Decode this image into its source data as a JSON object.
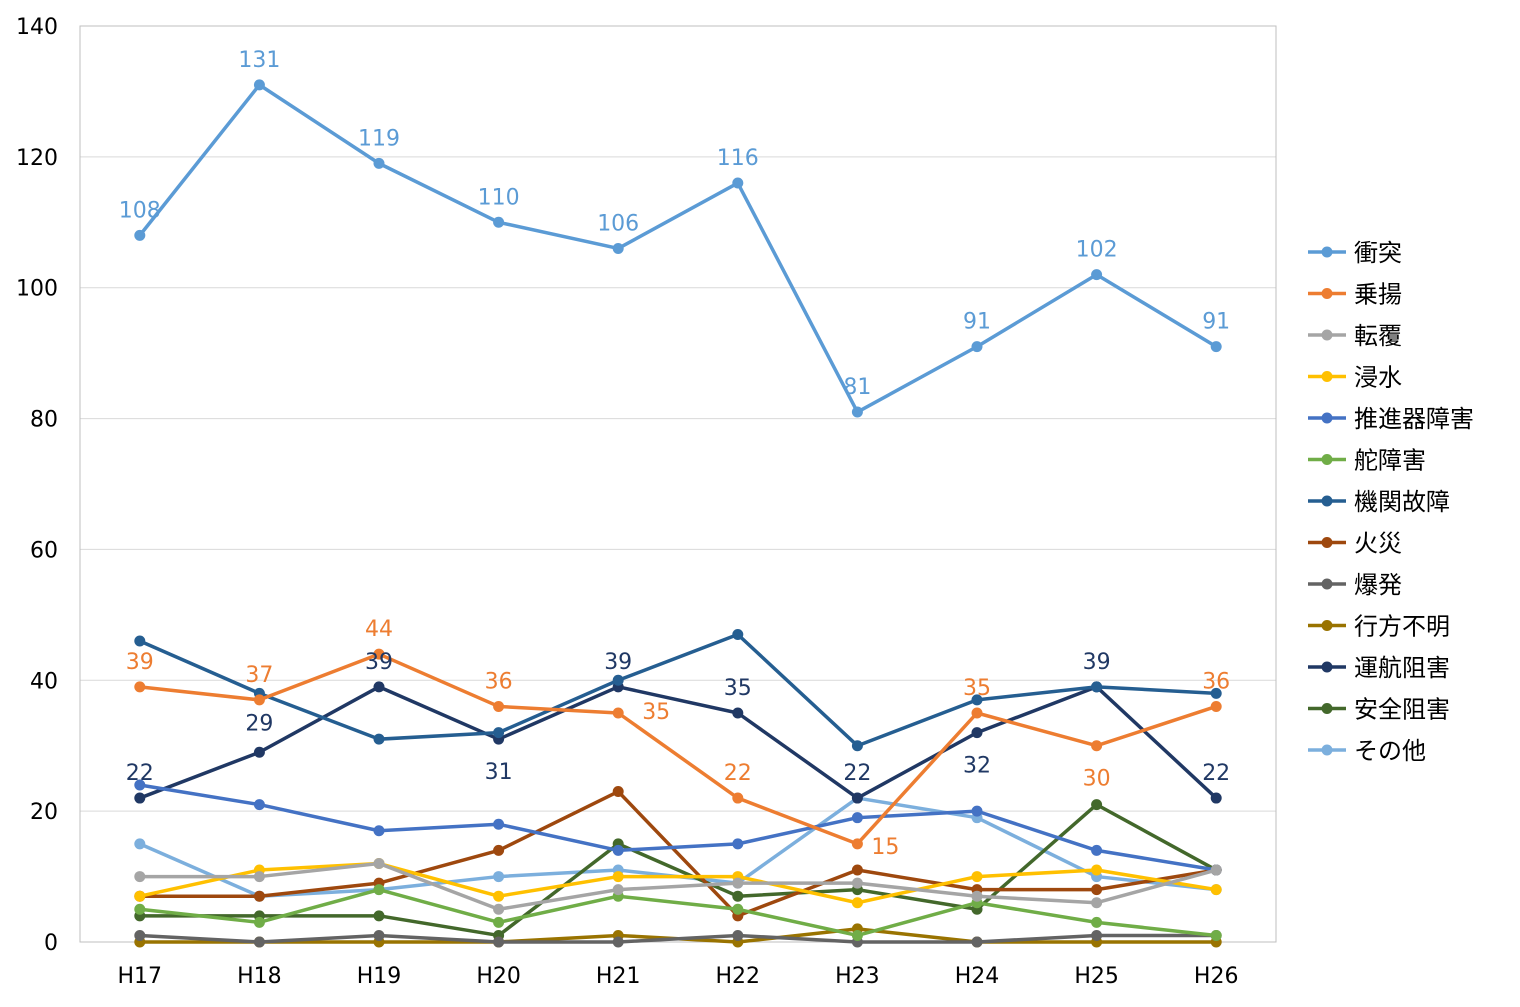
{
  "chart_data": {
    "type": "line",
    "title": "",
    "xlabel": "",
    "ylabel": "",
    "categories": [
      "H17",
      "H18",
      "H19",
      "H20",
      "H21",
      "H22",
      "H23",
      "H24",
      "H25",
      "H26"
    ],
    "ylim": [
      0,
      140
    ],
    "yticks": [
      "0",
      "20",
      "40",
      "60",
      "80",
      "100",
      "120",
      "140"
    ],
    "grid": "horizontal",
    "legend_position": "right",
    "series": [
      {
        "name": "衝突",
        "color": "#5b9bd5",
        "values": [
          108,
          131,
          119,
          110,
          106,
          116,
          81,
          91,
          102,
          91
        ],
        "labels": [
          "108",
          "131",
          "119",
          "110",
          "106",
          "116",
          "81",
          "91",
          "102",
          "91"
        ]
      },
      {
        "name": "乗揚",
        "color": "#ed7d31",
        "values": [
          39,
          37,
          44,
          36,
          35,
          22,
          15,
          35,
          30,
          36
        ],
        "labels": [
          "39",
          "37",
          "44",
          "36",
          "35",
          "22",
          "15",
          "35",
          "30",
          "36"
        ]
      },
      {
        "name": "転覆",
        "color": "#a5a5a5",
        "values": [
          10,
          10,
          12,
          5,
          8,
          9,
          9,
          7,
          6,
          11
        ],
        "labels": null
      },
      {
        "name": "浸水",
        "color": "#ffc000",
        "values": [
          7,
          11,
          12,
          7,
          10,
          10,
          6,
          10,
          11,
          8
        ],
        "labels": null
      },
      {
        "name": "推進器障害",
        "color": "#4472c4",
        "values": [
          24,
          21,
          17,
          18,
          14,
          15,
          19,
          20,
          14,
          11
        ],
        "labels": null
      },
      {
        "name": "舵障害",
        "color": "#70ad47",
        "values": [
          5,
          3,
          8,
          3,
          7,
          5,
          1,
          6,
          3,
          1
        ],
        "labels": null
      },
      {
        "name": "機関故障",
        "color": "#255e91",
        "values": [
          46,
          38,
          31,
          32,
          40,
          47,
          30,
          37,
          39,
          38
        ],
        "labels": null
      },
      {
        "name": "火災",
        "color": "#9e480e",
        "values": [
          7,
          7,
          9,
          14,
          23,
          4,
          11,
          8,
          8,
          11
        ],
        "labels": null
      },
      {
        "name": "爆発",
        "color": "#636363",
        "values": [
          1,
          0,
          1,
          0,
          0,
          1,
          0,
          0,
          1,
          1
        ],
        "labels": null
      },
      {
        "name": "行方不明",
        "color": "#997300",
        "values": [
          0,
          0,
          0,
          0,
          1,
          0,
          2,
          0,
          0,
          0
        ],
        "labels": null
      },
      {
        "name": "運航阻害",
        "color": "#203864",
        "values": [
          22,
          29,
          39,
          31,
          39,
          35,
          22,
          32,
          39,
          22
        ],
        "labels": [
          "22",
          "29",
          "39",
          "31",
          "39",
          "35",
          "22",
          "32",
          "39",
          "22"
        ]
      },
      {
        "name": "安全阻害",
        "color": "#43682b",
        "values": [
          4,
          4,
          4,
          1,
          15,
          7,
          8,
          5,
          21,
          11
        ],
        "labels": null
      },
      {
        "name": "その他",
        "color": "#7cafdd",
        "values": [
          15,
          7,
          8,
          10,
          11,
          9,
          22,
          19,
          10,
          8
        ],
        "labels": null
      }
    ]
  }
}
